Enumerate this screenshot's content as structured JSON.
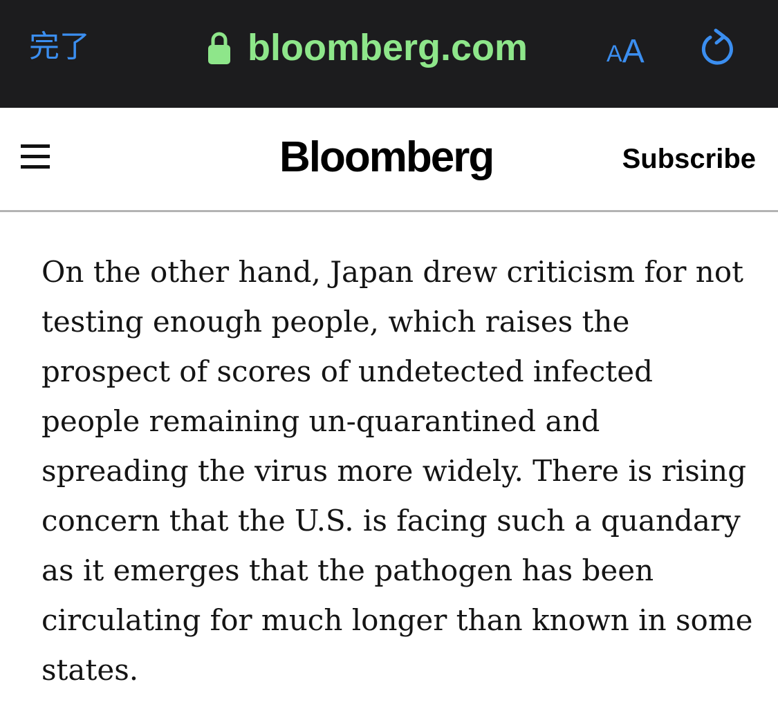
{
  "browser": {
    "done_label": "完了",
    "url": "bloomberg.com",
    "text_size_small": "A",
    "text_size_large": "A",
    "lock_icon": "lock-icon",
    "reload_icon": "reload-icon",
    "colors": {
      "bar_background": "#1c1c1e",
      "accent": "#3b8ef0",
      "url_secure": "#8ee68a"
    }
  },
  "site_header": {
    "menu_icon": "hamburger-menu-icon",
    "logo": "Bloomberg",
    "subscribe_label": "Subscribe"
  },
  "article": {
    "paragraph": "On the other hand, Japan drew criticism for not testing enough people, which raises the prospect of scores of undetected infected people remaining un-quarantined and spreading the virus more widely. There is rising concern that the U.S. is facing such a quandary as it emerges that the pathogen has been circulating for much longer than known in some states."
  }
}
